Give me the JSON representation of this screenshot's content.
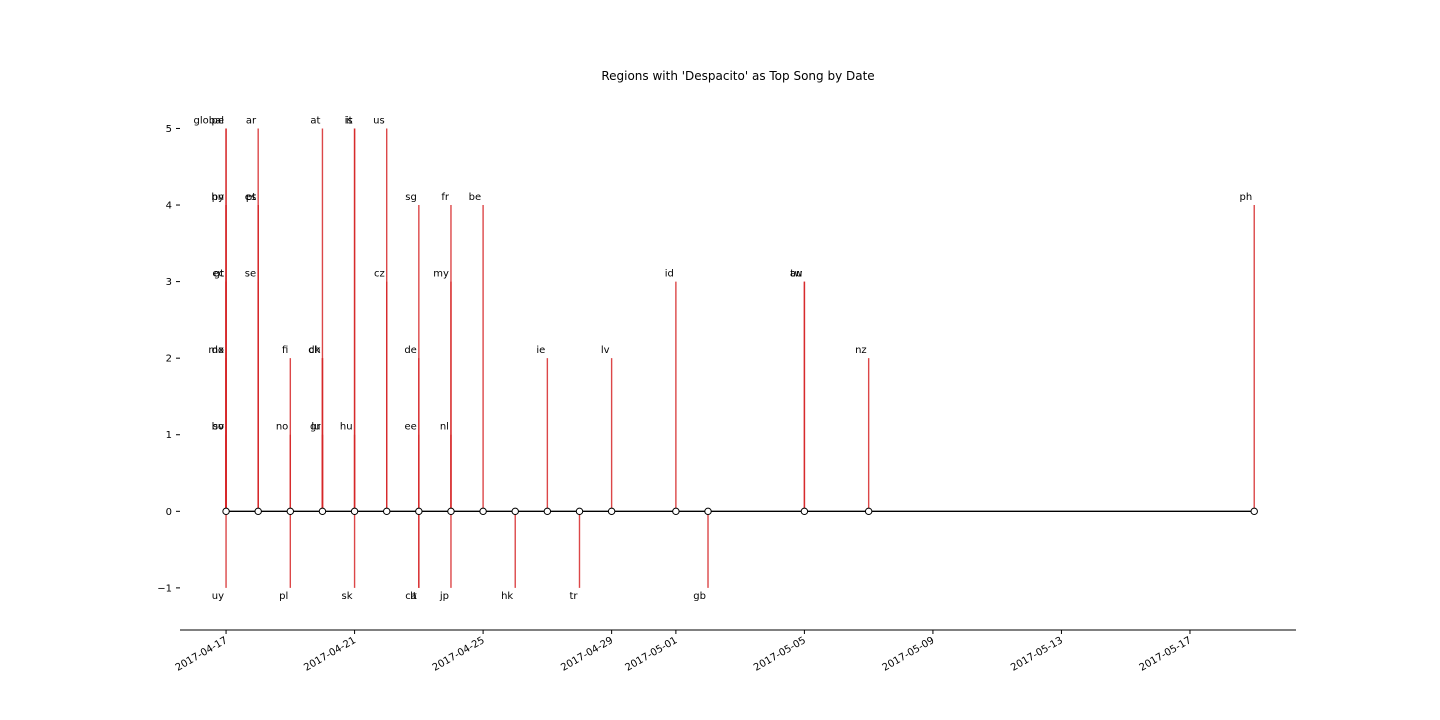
{
  "chart_data": {
    "type": "timeline",
    "title": "Regions with 'Despacito' as Top Song by Date",
    "xlabel": "",
    "ylabel": "",
    "ylim": [
      -1.55,
      5.45
    ],
    "xlim": [
      "2017-04-15T13:36",
      "2017-05-20T07:12"
    ],
    "yticks": [
      -1,
      0,
      1,
      2,
      3,
      4,
      5
    ],
    "ytick_labels": [
      "−1",
      "0",
      "1",
      "2",
      "3",
      "4",
      "5"
    ],
    "xticks": [
      "2017-04-17",
      "2017-04-21",
      "2017-04-25",
      "2017-04-29",
      "2017-05-01",
      "2017-05-05",
      "2017-05-09",
      "2017-05-13",
      "2017-05-17"
    ],
    "grid": false,
    "marker_dates": [
      "2017-04-17",
      "2017-04-18",
      "2017-04-19",
      "2017-04-20",
      "2017-04-21",
      "2017-04-22",
      "2017-04-23",
      "2017-04-24",
      "2017-04-25",
      "2017-04-26",
      "2017-04-27",
      "2017-04-28",
      "2017-04-29",
      "2017-05-01",
      "2017-05-02",
      "2017-05-05",
      "2017-05-07",
      "2017-05-19"
    ],
    "events": [
      {
        "region": "pe",
        "date": "2017-04-17",
        "level": 5
      },
      {
        "region": "global",
        "date": "2017-04-17",
        "level": 5
      },
      {
        "region": "hn",
        "date": "2017-04-17",
        "level": 4
      },
      {
        "region": "py",
        "date": "2017-04-17",
        "level": 4
      },
      {
        "region": "ec",
        "date": "2017-04-17",
        "level": 3
      },
      {
        "region": "gt",
        "date": "2017-04-17",
        "level": 3
      },
      {
        "region": "mx",
        "date": "2017-04-17",
        "level": 2
      },
      {
        "region": "do",
        "date": "2017-04-17",
        "level": 2
      },
      {
        "region": "bo",
        "date": "2017-04-17",
        "level": 1
      },
      {
        "region": "sv",
        "date": "2017-04-17",
        "level": 1
      },
      {
        "region": "uy",
        "date": "2017-04-17",
        "level": -1
      },
      {
        "region": "ar",
        "date": "2017-04-18",
        "level": 5
      },
      {
        "region": "es",
        "date": "2017-04-18",
        "level": 4
      },
      {
        "region": "pt",
        "date": "2017-04-18",
        "level": 4
      },
      {
        "region": "se",
        "date": "2017-04-18",
        "level": 3
      },
      {
        "region": "fi",
        "date": "2017-04-19",
        "level": 2
      },
      {
        "region": "no",
        "date": "2017-04-19",
        "level": 1
      },
      {
        "region": "pl",
        "date": "2017-04-19",
        "level": -1
      },
      {
        "region": "at",
        "date": "2017-04-20",
        "level": 5
      },
      {
        "region": "ch",
        "date": "2017-04-20",
        "level": 2
      },
      {
        "region": "dk",
        "date": "2017-04-20",
        "level": 2
      },
      {
        "region": "gr",
        "date": "2017-04-20",
        "level": 1
      },
      {
        "region": "lu",
        "date": "2017-04-20",
        "level": 1
      },
      {
        "region": "is",
        "date": "2017-04-21",
        "level": 5
      },
      {
        "region": "it",
        "date": "2017-04-21",
        "level": 5
      },
      {
        "region": "hu",
        "date": "2017-04-21",
        "level": 1
      },
      {
        "region": "sk",
        "date": "2017-04-21",
        "level": -1
      },
      {
        "region": "us",
        "date": "2017-04-22",
        "level": 5
      },
      {
        "region": "cz",
        "date": "2017-04-22",
        "level": 3
      },
      {
        "region": "sg",
        "date": "2017-04-23",
        "level": 4
      },
      {
        "region": "de",
        "date": "2017-04-23",
        "level": 2
      },
      {
        "region": "ee",
        "date": "2017-04-23",
        "level": 1
      },
      {
        "region": "ca",
        "date": "2017-04-23",
        "level": -1
      },
      {
        "region": "lt",
        "date": "2017-04-23",
        "level": -1
      },
      {
        "region": "fr",
        "date": "2017-04-24",
        "level": 4
      },
      {
        "region": "my",
        "date": "2017-04-24",
        "level": 3
      },
      {
        "region": "nl",
        "date": "2017-04-24",
        "level": 1
      },
      {
        "region": "jp",
        "date": "2017-04-24",
        "level": -1
      },
      {
        "region": "be",
        "date": "2017-04-25",
        "level": 4
      },
      {
        "region": "hk",
        "date": "2017-04-26",
        "level": -1
      },
      {
        "region": "ie",
        "date": "2017-04-27",
        "level": 2
      },
      {
        "region": "tr",
        "date": "2017-04-28",
        "level": -1
      },
      {
        "region": "lv",
        "date": "2017-04-29",
        "level": 2
      },
      {
        "region": "id",
        "date": "2017-05-01",
        "level": 3
      },
      {
        "region": "gb",
        "date": "2017-05-02",
        "level": -1
      },
      {
        "region": "au",
        "date": "2017-05-05",
        "level": 3
      },
      {
        "region": "tw",
        "date": "2017-05-05",
        "level": 3
      },
      {
        "region": "nz",
        "date": "2017-05-07",
        "level": 2
      },
      {
        "region": "ph",
        "date": "2017-05-19",
        "level": 4
      }
    ],
    "colors": {
      "stem": "#d62728",
      "baseline": "#000000",
      "marker_face": "#ffffff",
      "marker_edge": "#000000",
      "axis": "#000000"
    }
  }
}
